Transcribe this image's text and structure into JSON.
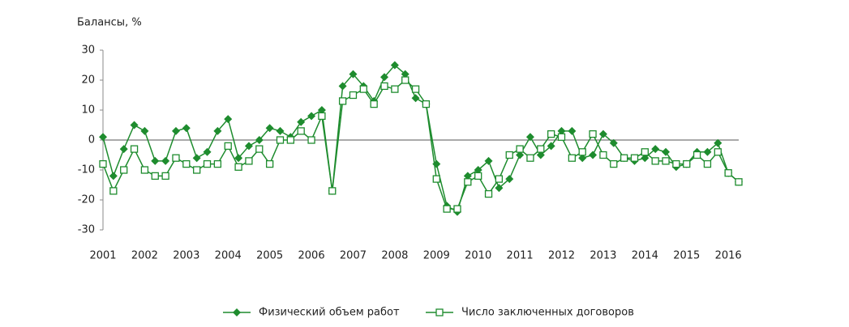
{
  "chart_data": {
    "type": "line",
    "y_label": "Балансы, %",
    "x": [
      2001,
      2001.25,
      2001.5,
      2001.75,
      2002,
      2002.25,
      2002.5,
      2002.75,
      2003,
      2003.25,
      2003.5,
      2003.75,
      2004,
      2004.25,
      2004.5,
      2004.75,
      2005,
      2005.25,
      2005.5,
      2005.75,
      2006,
      2006.25,
      2006.5,
      2006.75,
      2007,
      2007.25,
      2007.5,
      2007.75,
      2008,
      2008.25,
      2008.5,
      2008.75,
      2009,
      2009.25,
      2009.5,
      2009.75,
      2010,
      2010.25,
      2010.5,
      2010.75,
      2011,
      2011.25,
      2011.5,
      2011.75,
      2012,
      2012.25,
      2012.5,
      2012.75,
      2013,
      2013.25,
      2013.5,
      2013.75,
      2014,
      2014.25,
      2014.5,
      2014.75,
      2015,
      2015.25,
      2015.5,
      2015.75,
      2016,
      2016.25
    ],
    "series": [
      {
        "name": "Физический объем работ",
        "color": "#1e8c2e",
        "marker": "diamond",
        "values": [
          1,
          -12,
          -3,
          5,
          3,
          -7,
          -7,
          3,
          4,
          -6,
          -4,
          3,
          7,
          -6,
          -2,
          0,
          4,
          3,
          1,
          6,
          8,
          10,
          -17,
          18,
          22,
          18,
          13,
          21,
          25,
          22,
          14,
          12,
          -8,
          -22,
          -24,
          -12,
          -10,
          -7,
          -16,
          -13,
          -5,
          1,
          -5,
          -2,
          3,
          3,
          -6,
          -5,
          2,
          -1,
          -6,
          -7,
          -6,
          -3,
          -4,
          -9,
          -8,
          -4,
          -4,
          -1,
          -11,
          -14
        ]
      },
      {
        "name": "Число заключенных договоров",
        "color": "#1e8c2e",
        "marker": "square",
        "values": [
          -8,
          -17,
          -10,
          -3,
          -10,
          -12,
          -12,
          -6,
          -8,
          -10,
          -8,
          -8,
          -2,
          -9,
          -7,
          -3,
          -8,
          0,
          0,
          3,
          0,
          8,
          -17,
          13,
          15,
          17,
          12,
          18,
          17,
          20,
          17,
          12,
          -13,
          -23,
          -23,
          -14,
          -12,
          -18,
          -13,
          -5,
          -3,
          -6,
          -3,
          2,
          1,
          -6,
          -4,
          2,
          -5,
          -8,
          -6,
          -6,
          -4,
          -7,
          -7,
          -8,
          -8,
          -5,
          -8,
          -4,
          -11,
          -14
        ]
      }
    ],
    "xlim": [
      2001,
      2016.25
    ],
    "xticks": [
      2001,
      2002,
      2003,
      2004,
      2005,
      2006,
      2007,
      2008,
      2009,
      2010,
      2011,
      2012,
      2013,
      2014,
      2015,
      2016
    ],
    "ylim": [
      -30,
      30
    ],
    "yticks": [
      -30,
      -20,
      -10,
      0,
      10,
      20,
      30
    ]
  }
}
